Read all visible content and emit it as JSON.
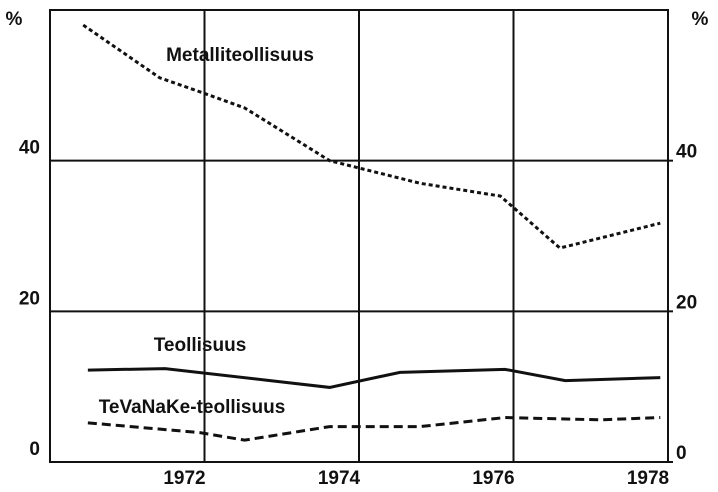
{
  "chart_data": {
    "type": "line",
    "y_label": "%",
    "y2_label": "%",
    "xlim": [
      1970,
      1978
    ],
    "xticks": [
      1972,
      1974,
      1976,
      1978
    ],
    "ylim": [
      0,
      60
    ],
    "yticks": [
      0,
      20,
      40
    ],
    "y2lim": [
      0,
      60
    ],
    "y2ticks": [
      0,
      20,
      40
    ],
    "grid": true,
    "series": [
      {
        "name": "Metalliteollisuus",
        "color": "#111111",
        "dash": "dotted",
        "x": [
          1970.43,
          1971.42,
          1971.98,
          1972.52,
          1973.62,
          1974.79,
          1975.83,
          1976.6,
          1977.9
        ],
        "values": [
          58,
          51,
          49,
          47,
          40,
          37,
          35.3,
          28.4,
          31.7
        ]
      },
      {
        "name": "Teollisuus",
        "color": "#111111",
        "dash": "solid",
        "x": [
          1970.49,
          1971.49,
          1973.62,
          1974.53,
          1975.89,
          1976.67,
          1977.9
        ],
        "values": [
          12.2,
          12.4,
          9.9,
          11.9,
          12.3,
          10.8,
          11.2
        ]
      },
      {
        "name": "TeVaNaKe-teollisuus",
        "color": "#111111",
        "dash": "dashed",
        "x": [
          1970.49,
          1971.94,
          1972.52,
          1973.62,
          1974.79,
          1975.89,
          1977.12,
          1977.9
        ],
        "values": [
          5.2,
          3.9,
          2.9,
          4.7,
          4.7,
          5.9,
          5.6,
          5.9
        ]
      }
    ]
  }
}
